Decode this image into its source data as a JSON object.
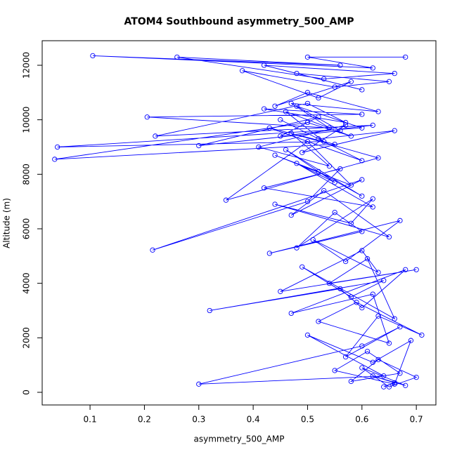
{
  "chart_data": {
    "type": "line",
    "title": "ATOM4 Southbound asymmetry_500_AMP",
    "x_label": "asymmetry_500_AMP",
    "y_label": "Altitude (m)",
    "color": "#0000ff",
    "markers": true,
    "xlim": [
      0.012,
      0.736
    ],
    "ylim": [
      -464,
      12901
    ],
    "xticks": [
      0.1,
      0.2,
      0.3,
      0.4,
      0.5,
      0.6,
      0.7
    ],
    "yticks": [
      0,
      2000,
      4000,
      6000,
      8000,
      10000,
      12000
    ],
    "x": [
      0.64,
      0.66,
      0.62,
      0.68,
      0.6,
      0.65,
      0.7,
      0.63,
      0.58,
      0.67,
      0.61,
      0.55,
      0.66,
      0.69,
      0.62,
      0.5,
      0.64,
      0.3,
      0.6,
      0.67,
      0.57,
      0.63,
      0.71,
      0.59,
      0.52,
      0.65,
      0.62,
      0.47,
      0.68,
      0.6,
      0.56,
      0.32,
      0.64,
      0.58,
      0.49,
      0.66,
      0.61,
      0.54,
      0.7,
      0.45,
      0.6,
      0.63,
      0.51,
      0.57,
      0.67,
      0.43,
      0.6,
      0.55,
      0.48,
      0.62,
      0.58,
      0.44,
      0.65,
      0.53,
      0.47,
      0.6,
      0.215,
      0.5,
      0.56,
      0.42,
      0.62,
      0.48,
      0.55,
      0.46,
      0.6,
      0.52,
      0.44,
      0.58,
      0.5,
      0.35,
      0.63,
      0.47,
      0.54,
      0.41,
      0.57,
      0.49,
      0.66,
      0.52,
      0.45,
      0.6,
      0.43,
      0.55,
      0.035,
      0.5,
      0.58,
      0.46,
      0.53,
      0.04,
      0.6,
      0.48,
      0.56,
      0.3,
      0.52,
      0.45,
      0.62,
      0.22,
      0.5,
      0.57,
      0.42,
      0.6,
      0.205,
      0.54,
      0.47,
      0.63,
      0.5,
      0.44,
      0.58,
      0.52,
      0.38,
      0.55,
      0.65,
      0.48,
      0.6,
      0.42,
      0.66,
      0.53,
      0.26,
      0.56,
      0.105,
      0.62,
      0.5,
      0.68
    ],
    "values": [
      200,
      350,
      600,
      250,
      900,
      200,
      550,
      1200,
      400,
      700,
      1500,
      800,
      300,
      1900,
      1100,
      2100,
      600,
      300,
      1700,
      2400,
      1300,
      2800,
      2100,
      3300,
      2600,
      1800,
      3600,
      2900,
      4500,
      3100,
      3800,
      3000,
      4100,
      3500,
      4600,
      2700,
      4900,
      4000,
      4500,
      3700,
      5200,
      4400,
      5600,
      4800,
      6300,
      5100,
      5900,
      6600,
      5300,
      7100,
      6200,
      6900,
      5700,
      7400,
      6500,
      7800,
      5220,
      7000,
      8200,
      7500,
      6800,
      8400,
      7700,
      8900,
      7200,
      8100,
      8700,
      7600,
      9200,
      7050,
      8600,
      9500,
      8300,
      9000,
      9800,
      8800,
      9600,
      9300,
      10000,
      8500,
      9700,
      9100,
      8550,
      9900,
      9400,
      10300,
      9200,
      9000,
      9700,
      10500,
      9600,
      9050,
      10100,
      9400,
      9800,
      9400,
      10600,
      9900,
      10400,
      10200,
      10100,
      9700,
      10600,
      10300,
      11000,
      10500,
      11400,
      10800,
      11800,
      11200,
      11400,
      11700,
      11100,
      12000,
      11700,
      11500,
      12300,
      12000,
      12350,
      11900,
      12300,
      12300
    ]
  }
}
